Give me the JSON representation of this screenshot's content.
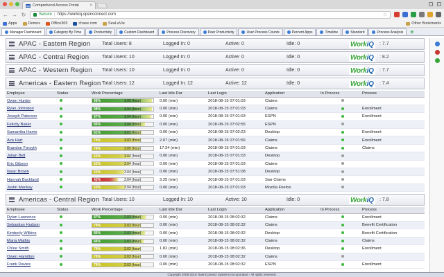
{
  "browser": {
    "tab_title": "Comprehend Access Portal",
    "tab_icon": "OC",
    "secure_label": "Secure",
    "url": "https://workiq.openconnect.com",
    "bookmarks": [
      "Apps",
      "Demos",
      "Office365",
      "chase.com",
      "SeaLaVie"
    ],
    "other_bookmarks": "Other Bookmarks"
  },
  "appnav": {
    "tabs": [
      "Manager Dashboard",
      "Category By Time",
      "Productivity",
      "Custom Dashboard",
      "Process Discovery",
      "Peer Productivity",
      "User Process Counts",
      "Percent Apps",
      "Timeline",
      "Standard",
      "Process Analysis"
    ],
    "plus": "+"
  },
  "labels": {
    "total": "Total Users:",
    "logged": "Logged In:",
    "active": "Active:",
    "idle": "Idle:",
    "logo_work": "Work",
    "logo_iq": "iQ"
  },
  "columns": [
    "Employee",
    "Status",
    "Work Percentage",
    "Last Idle Dur",
    "Last Login",
    "Application",
    "In Process",
    "Process"
  ],
  "regions": [
    {
      "name": "APAC - Eastern Region",
      "total": "8",
      "logged": "0",
      "active": "0",
      "idle": "0",
      "score": ": 7.7",
      "employees": []
    },
    {
      "name": "APAC - Central Region",
      "total": "10",
      "logged": "0",
      "active": "0",
      "idle": "0",
      "score": ": 8.2",
      "employees": []
    },
    {
      "name": "APAC - Western Region",
      "total": "10",
      "logged": "0",
      "active": "0",
      "idle": "0",
      "score": ": 7.7",
      "employees": []
    },
    {
      "name": "Americas - Eastern Region",
      "total": "12",
      "logged": "12",
      "active": "12",
      "idle": "0",
      "score": ": 7.4",
      "employees": [
        {
          "name": "Owen Hunter",
          "status": "green",
          "pct": "98%",
          "pct_value": 98,
          "color": "green",
          "hours": "3.05 (hour)",
          "idle": "0.00 (min)",
          "login": "2018-08-15 07:01:03",
          "app": "Claims",
          "inproc": "gray",
          "process": ""
        },
        {
          "name": "Ryan Johnston",
          "status": "green",
          "pct": "98%",
          "pct_value": 98,
          "color": "green",
          "hours": "3.04 (hour)",
          "idle": "0.00 (min)",
          "login": "2018-08-15 07:01:03",
          "app": "Claims",
          "inproc": "green",
          "process": "Enrollment"
        },
        {
          "name": "Joseph Paterson",
          "status": "green",
          "pct": "97%",
          "pct_value": 97,
          "color": "green",
          "hours": "3.04 (hour)",
          "idle": "0.00 (min)",
          "login": "2018-08-15 07:01:03",
          "app": "ESPN",
          "inproc": "green",
          "process": "Enrollment"
        },
        {
          "name": "Felicity Baker",
          "status": "green",
          "pct": "86%",
          "pct_value": 86,
          "color": "green",
          "hours": "3.04 (hour)",
          "idle": "0.00 (min)",
          "login": "2018-08-15 07:02:55",
          "app": "ESPN",
          "inproc": "gray",
          "process": ""
        },
        {
          "name": "Samantha Harris",
          "status": "green",
          "pct": "81%",
          "pct_value": 81,
          "color": "green",
          "hours": "3.03 (hour)",
          "idle": "0.00 (min)",
          "login": "2018-08-15 07:02:23",
          "app": "Desktop",
          "inproc": "green",
          "process": "Enrollment"
        },
        {
          "name": "Ava Hart",
          "status": "green",
          "pct": "79%",
          "pct_value": 79,
          "color": "yellow",
          "hours": "3.03 (hour)",
          "idle": "2.07 (min)",
          "login": "2018-08-15 07:01:56",
          "app": "Claims",
          "inproc": "green",
          "process": "Enrollment"
        },
        {
          "name": "Brandon Forsyth",
          "status": "green",
          "pct": "78%",
          "pct_value": 78,
          "color": "yellow",
          "hours": "3.05 (hour)",
          "idle": "17.34 (min)",
          "login": "2018-08-15 07:01:03",
          "app": "Claims",
          "inproc": "green",
          "process": "Claims"
        },
        {
          "name": "Julian Bell",
          "status": "green",
          "pct": "63%",
          "pct_value": 63,
          "color": "yellow",
          "hours": "3.04 (hour)",
          "idle": "0.00 (min)",
          "login": "2018-08-15 07:01:03",
          "app": "Desktop",
          "inproc": "gray",
          "process": ""
        },
        {
          "name": "Eric Gibson",
          "status": "green",
          "pct": "62%",
          "pct_value": 62,
          "color": "yellow",
          "hours": "3.04 (hour)",
          "idle": "0.00 (min)",
          "login": "2018-08-15 07:01:03",
          "app": "Claims",
          "inproc": "gray",
          "process": ""
        },
        {
          "name": "Isaac Brown",
          "status": "green",
          "pct": "52%",
          "pct_value": 52,
          "color": "yellow",
          "hours": "3.04 (hour)",
          "idle": "0.00 (min)",
          "login": "2018-08-15 07:51:08",
          "app": "Desktop",
          "inproc": "gray",
          "process": ""
        },
        {
          "name": "Hannah Buckland",
          "status": "green",
          "pct": "42%",
          "pct_value": 42,
          "color": "red",
          "hours": "3.04 (hour)",
          "idle": "3.25 (min)",
          "login": "2018-08-15 07:01:03",
          "app": "Star Claims",
          "inproc": "gray",
          "process": ""
        },
        {
          "name": "Justin Mackay",
          "status": "green",
          "pct": "53%",
          "pct_value": 53,
          "color": "yellow",
          "hours": "3.04 (hour)",
          "idle": "0.00 (min)",
          "login": "2018-08-15 07:01:03",
          "app": "Mozilla Firefox",
          "inproc": "gray",
          "process": ""
        }
      ]
    },
    {
      "name": "Americas - Central Region",
      "total": "10",
      "logged": "10",
      "active": "10",
      "idle": "0",
      "score": ": 7.8",
      "employees": [
        {
          "name": "Dylan Lawrence",
          "status": "green",
          "pct": "87%",
          "pct_value": 87,
          "color": "green",
          "hours": "2.03 (hour)",
          "idle": "0.00 (min)",
          "login": "2018-08-15 08:02:32",
          "app": "Claims",
          "inproc": "green",
          "process": "Enrollment"
        },
        {
          "name": "Sebastian Hudson",
          "status": "green",
          "pct": "79%",
          "pct_value": 79,
          "color": "yellow",
          "hours": "2.03 (hour)",
          "idle": "0.00 (min)",
          "login": "2018-08-15 08:02:32",
          "app": "Claims",
          "inproc": "green",
          "process": "Benefit Certification"
        },
        {
          "name": "Kimberly Wilkins",
          "status": "green",
          "pct": "86%",
          "pct_value": 86,
          "color": "green",
          "hours": "2.03 (hour)",
          "idle": "0.00 (min)",
          "login": "2018-08-15 08:02:32",
          "app": "Desktop",
          "inproc": "green",
          "process": "Benefit Certification"
        },
        {
          "name": "Maria Mathis",
          "status": "green",
          "pct": "84%",
          "pct_value": 84,
          "color": "green",
          "hours": "2.03 (hour)",
          "idle": "0.00 (min)",
          "login": "2018-08-15 08:02:32",
          "app": "Claims",
          "inproc": "green",
          "process": "Claims"
        },
        {
          "name": "Chloe Smith",
          "status": "green",
          "pct": "79%",
          "pct_value": 79,
          "color": "yellow",
          "hours": "2.02 (hour)",
          "idle": "1.82 (min)",
          "login": "2018-08-15 08:02:36",
          "app": "Desktop",
          "inproc": "green",
          "process": "Enrollment"
        },
        {
          "name": "Owen Hamilton",
          "status": "green",
          "pct": "79%",
          "pct_value": 79,
          "color": "yellow",
          "hours": "2.03 (hour)",
          "idle": "0.00 (min)",
          "login": "2018-08-15 08:02:32",
          "app": "Claims",
          "inproc": "gray",
          "process": ""
        },
        {
          "name": "Frank Davies",
          "status": "green",
          "pct": "79%",
          "pct_value": 79,
          "color": "yellow",
          "hours": "2.03 (hour)",
          "idle": "0.00 (min)",
          "login": "2018-08-15 08:02:32",
          "app": "ESPN",
          "inproc": "green",
          "process": "Enrollment"
        }
      ]
    }
  ],
  "footer": "Copyright 2008-2018 OpenConnect Systems Incorporated - All rights reserved.",
  "colors": {
    "green": "#3d9c2a",
    "yellow": "#c9c41e",
    "red": "#c8221e"
  }
}
